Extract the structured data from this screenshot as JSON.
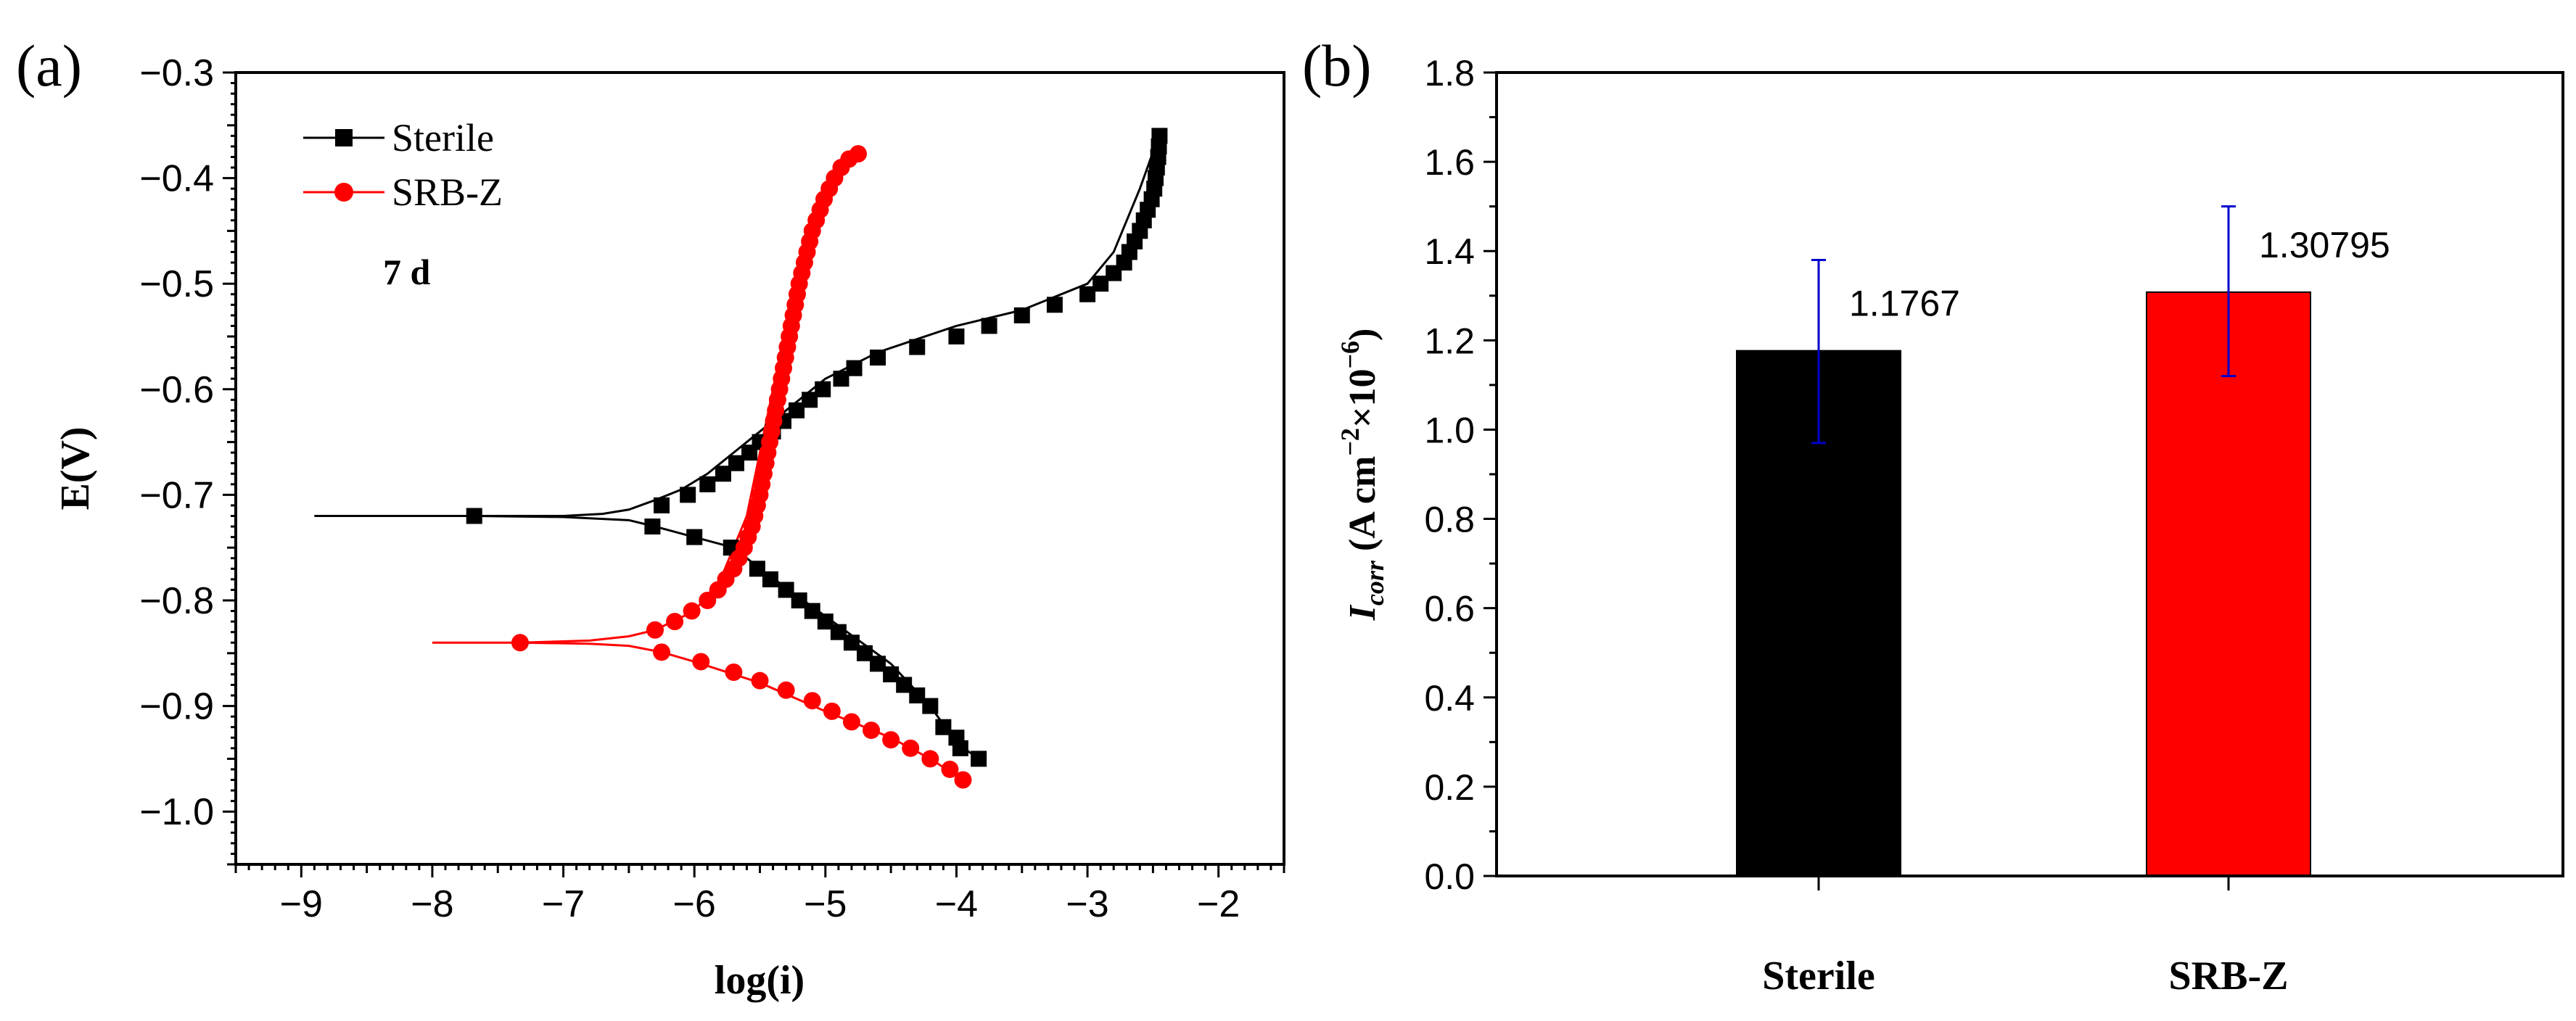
{
  "panel_labels": {
    "a": "(a)",
    "b": "(b)"
  },
  "chart_data": [
    {
      "type": "line",
      "panel": "(a)",
      "title": "",
      "xlabel": "log(i)",
      "ylabel": "E(V)",
      "xlim": [
        -9.5,
        -1.5
      ],
      "ylim": [
        -1.05,
        -0.3
      ],
      "xticks": [
        -9,
        -8,
        -7,
        -6,
        -5,
        -4,
        -3,
        -2
      ],
      "xtick_labels": [
        "−9",
        "−8",
        "−7",
        "−6",
        "−5",
        "−4",
        "−3",
        "−2"
      ],
      "yticks": [
        -0.3,
        -0.4,
        -0.5,
        -0.6,
        -0.7,
        -0.8,
        -0.9,
        -1.0
      ],
      "ytick_labels": [
        "−0.3",
        "−0.4",
        "−0.5",
        "−0.6",
        "−0.7",
        "−0.8",
        "−0.9",
        "−1.0"
      ],
      "annotation": "7 d",
      "legend": {
        "placement": "top-left",
        "entries": [
          "Sterile",
          "SRB-Z"
        ]
      },
      "series": [
        {
          "name": "Sterile",
          "color": "#000000",
          "marker": "square",
          "line": [
            [
              -8.9,
              -0.72
            ],
            [
              -7.68,
              -0.72
            ],
            [
              -7.0,
              -0.721
            ],
            [
              -6.5,
              -0.724
            ],
            [
              -6.3,
              -0.73
            ],
            [
              -6.0,
              -0.74
            ],
            [
              -5.7,
              -0.75
            ],
            [
              -5.5,
              -0.77
            ],
            [
              -5.0,
              -0.815
            ],
            [
              -4.5,
              -0.86
            ],
            [
              -4.2,
              -0.9
            ],
            [
              -4.0,
              -0.935
            ],
            [
              -3.83,
              -0.95
            ]
          ],
          "line_upper": [
            [
              -7.68,
              -0.72
            ],
            [
              -7.0,
              -0.72
            ],
            [
              -6.7,
              -0.718
            ],
            [
              -6.5,
              -0.714
            ],
            [
              -6.3,
              -0.705
            ],
            [
              -6.1,
              -0.695
            ],
            [
              -5.9,
              -0.68
            ],
            [
              -5.6,
              -0.65
            ],
            [
              -5.3,
              -0.62
            ],
            [
              -5.0,
              -0.59
            ],
            [
              -4.6,
              -0.565
            ],
            [
              -4.0,
              -0.54
            ],
            [
              -3.5,
              -0.525
            ],
            [
              -3.0,
              -0.5
            ],
            [
              -2.8,
              -0.47
            ],
            [
              -2.6,
              -0.41
            ],
            [
              -2.45,
              -0.358
            ]
          ],
          "markers_lower": [
            [
              -7.68,
              -0.72
            ],
            [
              -6.32,
              -0.73
            ],
            [
              -6.0,
              -0.74
            ],
            [
              -5.72,
              -0.75
            ],
            [
              -5.52,
              -0.77
            ],
            [
              -5.42,
              -0.78
            ],
            [
              -5.3,
              -0.79
            ],
            [
              -5.2,
              -0.8
            ],
            [
              -5.1,
              -0.81
            ],
            [
              -5.0,
              -0.82
            ],
            [
              -4.9,
              -0.83
            ],
            [
              -4.8,
              -0.84
            ],
            [
              -4.7,
              -0.85
            ],
            [
              -4.6,
              -0.86
            ],
            [
              -4.5,
              -0.87
            ],
            [
              -4.4,
              -0.88
            ],
            [
              -4.3,
              -0.89
            ],
            [
              -4.2,
              -0.9
            ],
            [
              -4.1,
              -0.92
            ],
            [
              -4.0,
              -0.93
            ],
            [
              -3.97,
              -0.94
            ],
            [
              -3.83,
              -0.95
            ]
          ],
          "markers_upper": [
            [
              -6.25,
              -0.71
            ],
            [
              -6.05,
              -0.7
            ],
            [
              -5.9,
              -0.69
            ],
            [
              -5.78,
              -0.68
            ],
            [
              -5.68,
              -0.67
            ],
            [
              -5.58,
              -0.66
            ],
            [
              -5.5,
              -0.65
            ],
            [
              -5.4,
              -0.64
            ],
            [
              -5.32,
              -0.63
            ],
            [
              -5.22,
              -0.62
            ],
            [
              -5.12,
              -0.61
            ],
            [
              -5.02,
              -0.6
            ],
            [
              -4.88,
              -0.59
            ],
            [
              -4.78,
              -0.58
            ],
            [
              -4.6,
              -0.57
            ],
            [
              -4.3,
              -0.56
            ],
            [
              -4.0,
              -0.55
            ],
            [
              -3.75,
              -0.54
            ],
            [
              -3.5,
              -0.53
            ],
            [
              -3.25,
              -0.52
            ],
            [
              -3.0,
              -0.51
            ],
            [
              -2.9,
              -0.5
            ],
            [
              -2.8,
              -0.49
            ],
            [
              -2.72,
              -0.48
            ],
            [
              -2.68,
              -0.47
            ],
            [
              -2.64,
              -0.46
            ],
            [
              -2.6,
              -0.45
            ],
            [
              -2.57,
              -0.44
            ],
            [
              -2.54,
              -0.43
            ],
            [
              -2.51,
              -0.42
            ],
            [
              -2.49,
              -0.41
            ],
            [
              -2.48,
              -0.4
            ],
            [
              -2.47,
              -0.39
            ],
            [
              -2.46,
              -0.38
            ],
            [
              -2.455,
              -0.37
            ],
            [
              -2.45,
              -0.36
            ]
          ]
        },
        {
          "name": "SRB-Z",
          "color": "#ff0000",
          "marker": "circle",
          "line": [
            [
              -8.0,
              -0.84
            ],
            [
              -7.33,
              -0.84
            ],
            [
              -6.8,
              -0.841
            ],
            [
              -6.5,
              -0.843
            ],
            [
              -6.25,
              -0.849
            ],
            [
              -6.0,
              -0.858
            ],
            [
              -5.5,
              -0.878
            ],
            [
              -5.0,
              -0.905
            ],
            [
              -4.5,
              -0.93
            ],
            [
              -4.2,
              -0.95
            ],
            [
              -3.95,
              -0.97
            ]
          ],
          "line_upper": [
            [
              -7.33,
              -0.84
            ],
            [
              -6.8,
              -0.838
            ],
            [
              -6.5,
              -0.834
            ],
            [
              -6.3,
              -0.828
            ],
            [
              -6.0,
              -0.81
            ],
            [
              -5.8,
              -0.78
            ],
            [
              -5.6,
              -0.72
            ],
            [
              -5.5,
              -0.66
            ],
            [
              -5.4,
              -0.6
            ],
            [
              -5.3,
              -0.54
            ],
            [
              -5.2,
              -0.49
            ],
            [
              -5.05,
              -0.44
            ],
            [
              -4.9,
              -0.4
            ],
            [
              -4.75,
              -0.377
            ]
          ],
          "markers_lower": [
            [
              -7.33,
              -0.84
            ],
            [
              -6.25,
              -0.849
            ],
            [
              -5.95,
              -0.858
            ],
            [
              -5.7,
              -0.868
            ],
            [
              -5.5,
              -0.876
            ],
            [
              -5.3,
              -0.885
            ],
            [
              -5.1,
              -0.895
            ],
            [
              -4.95,
              -0.905
            ],
            [
              -4.8,
              -0.915
            ],
            [
              -4.65,
              -0.923
            ],
            [
              -4.5,
              -0.932
            ],
            [
              -4.35,
              -0.94
            ],
            [
              -4.2,
              -0.95
            ],
            [
              -4.05,
              -0.96
            ],
            [
              -3.95,
              -0.97
            ]
          ],
          "markers_upper": [
            [
              -6.3,
              -0.828
            ],
            [
              -6.15,
              -0.82
            ],
            [
              -6.02,
              -0.81
            ],
            [
              -5.9,
              -0.8
            ],
            [
              -5.82,
              -0.79
            ],
            [
              -5.76,
              -0.78
            ],
            [
              -5.7,
              -0.77
            ],
            [
              -5.66,
              -0.76
            ],
            [
              -5.62,
              -0.75
            ],
            [
              -5.59,
              -0.74
            ],
            [
              -5.56,
              -0.73
            ],
            [
              -5.54,
              -0.72
            ],
            [
              -5.52,
              -0.71
            ],
            [
              -5.5,
              -0.7
            ],
            [
              -5.485,
              -0.69
            ],
            [
              -5.47,
              -0.68
            ],
            [
              -5.455,
              -0.67
            ],
            [
              -5.44,
              -0.66
            ],
            [
              -5.425,
              -0.65
            ],
            [
              -5.41,
              -0.64
            ],
            [
              -5.395,
              -0.63
            ],
            [
              -5.38,
              -0.62
            ],
            [
              -5.365,
              -0.61
            ],
            [
              -5.35,
              -0.6
            ],
            [
              -5.335,
              -0.59
            ],
            [
              -5.32,
              -0.58
            ],
            [
              -5.305,
              -0.57
            ],
            [
              -5.29,
              -0.56
            ],
            [
              -5.275,
              -0.55
            ],
            [
              -5.26,
              -0.54
            ],
            [
              -5.245,
              -0.53
            ],
            [
              -5.23,
              -0.52
            ],
            [
              -5.215,
              -0.51
            ],
            [
              -5.2,
              -0.5
            ],
            [
              -5.18,
              -0.49
            ],
            [
              -5.16,
              -0.48
            ],
            [
              -5.14,
              -0.47
            ],
            [
              -5.12,
              -0.46
            ],
            [
              -5.1,
              -0.45
            ],
            [
              -5.07,
              -0.44
            ],
            [
              -5.04,
              -0.43
            ],
            [
              -5.01,
              -0.42
            ],
            [
              -4.97,
              -0.41
            ],
            [
              -4.93,
              -0.4
            ],
            [
              -4.88,
              -0.39
            ],
            [
              -4.82,
              -0.382
            ],
            [
              -4.75,
              -0.377
            ]
          ]
        }
      ]
    },
    {
      "type": "bar",
      "panel": "(b)",
      "title": "",
      "xlabel": "",
      "ylabel_main": "I",
      "ylabel_sub": "corr",
      "ylabel_rest": " (A cm",
      "ylabel_sup1": "−2",
      "ylabel_mid": "×10",
      "ylabel_sup2": "−6",
      "ylabel_end": ")",
      "ylim": [
        0.0,
        1.8
      ],
      "yticks": [
        0.0,
        0.2,
        0.4,
        0.6,
        0.8,
        1.0,
        1.2,
        1.4,
        1.6,
        1.8
      ],
      "ytick_labels": [
        "0.0",
        "0.2",
        "0.4",
        "0.6",
        "0.8",
        "1.0",
        "1.2",
        "1.4",
        "1.6",
        "1.8"
      ],
      "categories": [
        "Sterile",
        "SRB-Z"
      ],
      "values": [
        1.1767,
        1.30795
      ],
      "value_labels": [
        "1.1767",
        "1.30795"
      ],
      "error_low": [
        0.97,
        1.12
      ],
      "error_high": [
        1.38,
        1.5
      ],
      "colors": [
        "#000000",
        "#ff0000"
      ],
      "error_color": "#0000cc"
    }
  ]
}
